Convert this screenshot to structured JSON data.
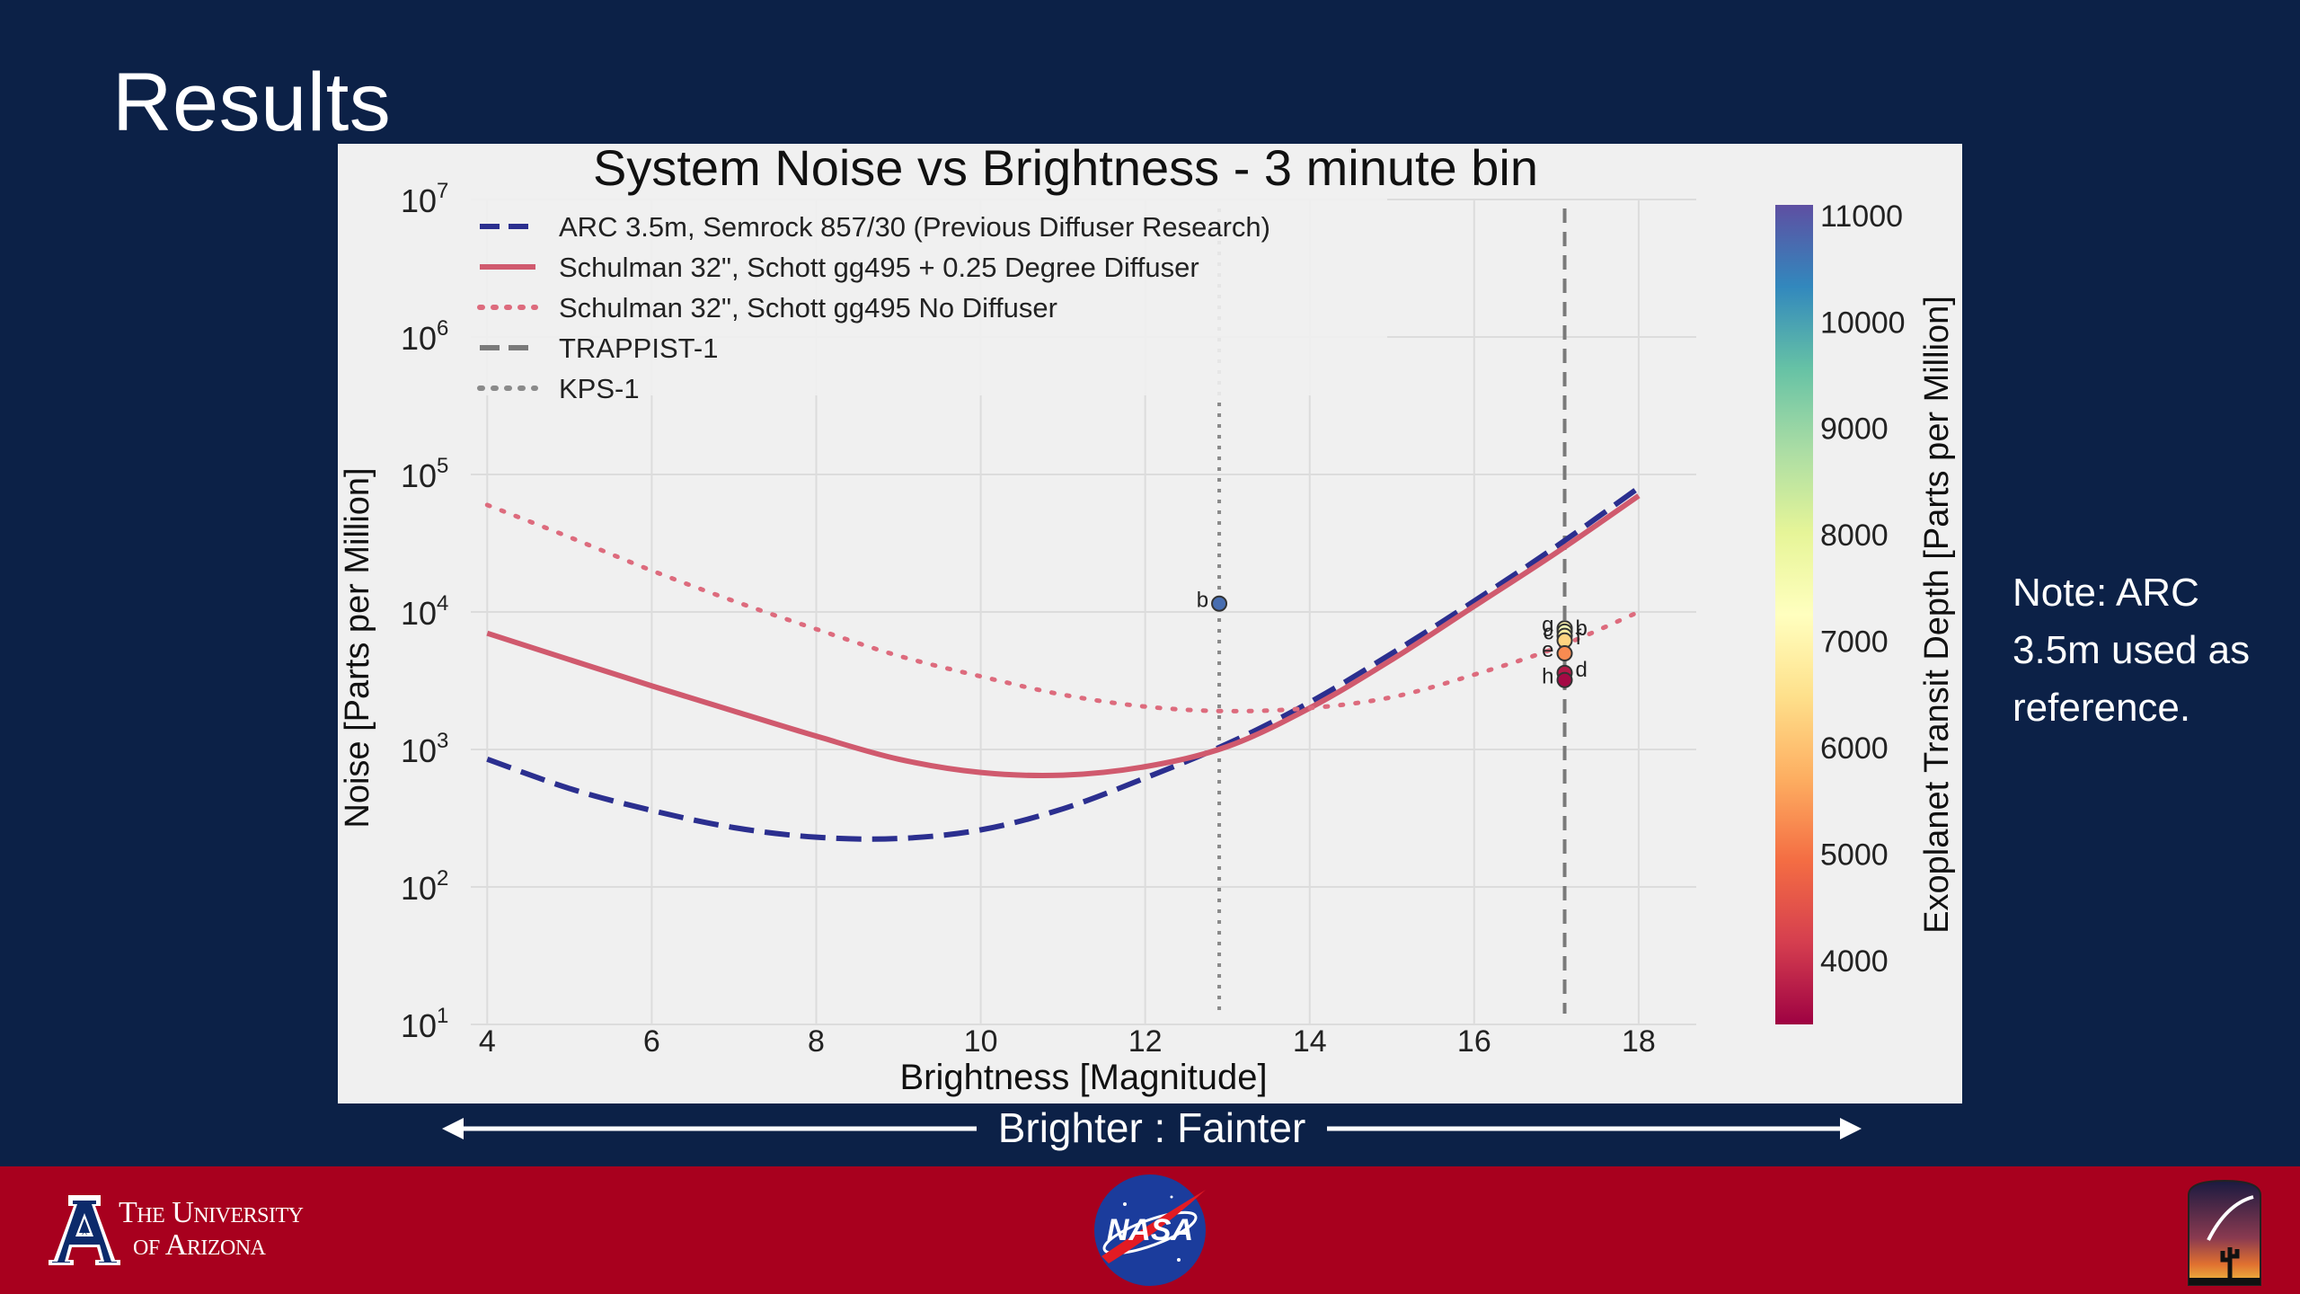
{
  "slide": {
    "title": "Results",
    "note": "Note: ARC 3.5m used as reference.",
    "direction_label": "Brighter : Fainter",
    "footer": {
      "university_line1": "The University",
      "university_line2": "of Arizona",
      "university_mark": "A",
      "nasa_label": "NASA",
      "logos": [
        "university-of-arizona-logo",
        "nasa-logo",
        "steward-observatory-logo"
      ]
    }
  },
  "chart_data": {
    "type": "line",
    "title": "System Noise vs Brightness - 3 minute bin",
    "xlabel": "Brightness [Magnitude]",
    "ylabel": "Noise [Parts per Million]",
    "xlim": [
      3.8,
      18.7
    ],
    "ylim": [
      10,
      10000000
    ],
    "yscale": "log",
    "xticks": [
      4,
      6,
      8,
      10,
      12,
      14,
      16,
      18
    ],
    "yticks": [
      {
        "value": 10,
        "base": "10",
        "exp": "1"
      },
      {
        "value": 100,
        "base": "10",
        "exp": "2"
      },
      {
        "value": 1000,
        "base": "10",
        "exp": "3"
      },
      {
        "value": 10000,
        "base": "10",
        "exp": "4"
      },
      {
        "value": 100000,
        "base": "10",
        "exp": "5"
      },
      {
        "value": 1000000,
        "base": "10",
        "exp": "6"
      },
      {
        "value": 10000000,
        "base": "10",
        "exp": "7"
      }
    ],
    "grid": true,
    "legend_position": "top-left",
    "series": [
      {
        "name": "ARC 3.5m, Semrock 857/30 (Previous Diffuser Research)",
        "style": "dashed",
        "color": "#2b2f8f",
        "x": [
          4,
          5,
          6,
          7,
          8,
          9,
          10,
          11,
          12,
          13,
          14,
          15,
          16,
          17,
          18
        ],
        "y": [
          850,
          520,
          360,
          270,
          230,
          225,
          260,
          370,
          620,
          1100,
          2200,
          5000,
          12000,
          30000,
          80000
        ]
      },
      {
        "name": "Schulman 32\", Schott gg495 + 0.25 Degree Diffuser",
        "style": "solid",
        "color": "#d05a6e",
        "x": [
          4,
          5,
          6,
          7,
          8,
          9,
          10,
          11,
          12,
          13,
          14,
          15,
          16,
          17,
          18
        ],
        "y": [
          7000,
          4500,
          2900,
          1900,
          1250,
          850,
          680,
          650,
          750,
          1050,
          2000,
          4500,
          11000,
          27000,
          70000
        ]
      },
      {
        "name": "Schulman 32\", Schott gg495 No Diffuser",
        "style": "dotted",
        "color": "#dd6b7d",
        "x": [
          4,
          5,
          6,
          7,
          8,
          9,
          10,
          11,
          12,
          13,
          14,
          15,
          16,
          17,
          18
        ],
        "y": [
          60000,
          35000,
          20000,
          12000,
          7500,
          4800,
          3400,
          2500,
          2050,
          1900,
          2000,
          2400,
          3500,
          5500,
          10000
        ]
      }
    ],
    "vlines": [
      {
        "name": "TRAPPIST-1",
        "x": 17.1,
        "style": "dashed",
        "color": "#7a7a7a"
      },
      {
        "name": "KPS-1",
        "x": 12.9,
        "style": "dotted",
        "color": "#8a8a8a"
      }
    ],
    "points": [
      {
        "label": "b",
        "x": 12.9,
        "y": 11500,
        "depth": 10700,
        "label_side": "left"
      },
      {
        "label": "g",
        "x": 17.1,
        "y": 7600,
        "depth": 7000,
        "label_side": "left"
      },
      {
        "label": "b",
        "x": 17.1,
        "y": 7200,
        "depth": 7400,
        "label_side": "right"
      },
      {
        "label": "c",
        "x": 17.1,
        "y": 6700,
        "depth": 6800,
        "label_side": "left"
      },
      {
        "label": "f",
        "x": 17.1,
        "y": 6200,
        "depth": 6300,
        "label_side": "right"
      },
      {
        "label": "e",
        "x": 17.1,
        "y": 5000,
        "depth": 5300,
        "label_side": "left"
      },
      {
        "label": "d",
        "x": 17.1,
        "y": 3600,
        "depth": 3700,
        "label_side": "right"
      },
      {
        "label": "h",
        "x": 17.1,
        "y": 3200,
        "depth": 3500,
        "label_side": "left"
      }
    ],
    "colorbar": {
      "label": "Exoplanet Transit Depth [Parts per Million]",
      "min": 3400,
      "max": 11100,
      "ticks": [
        4000,
        5000,
        6000,
        7000,
        8000,
        9000,
        10000,
        11000
      ],
      "colormap": "Spectral"
    }
  }
}
